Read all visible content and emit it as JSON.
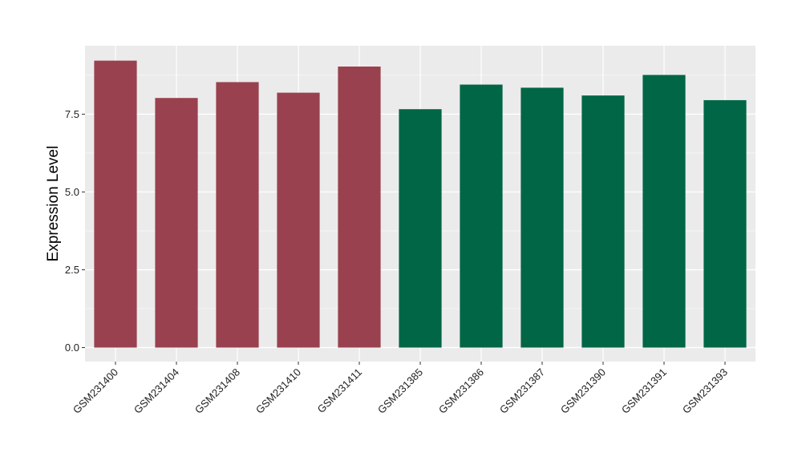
{
  "chart_data": {
    "type": "bar",
    "title": "",
    "xlabel": "",
    "ylabel": "Expression Level",
    "categories": [
      "GSM231400",
      "GSM231404",
      "GSM231408",
      "GSM231410",
      "GSM231411",
      "GSM231385",
      "GSM231386",
      "GSM231387",
      "GSM231390",
      "GSM231391",
      "GSM231393"
    ],
    "values": [
      9.22,
      8.02,
      8.53,
      8.19,
      9.03,
      7.66,
      8.45,
      8.35,
      8.1,
      8.76,
      7.95
    ],
    "groups": [
      1,
      1,
      1,
      1,
      1,
      2,
      2,
      2,
      2,
      2,
      2
    ],
    "group_colors": {
      "1": "#99414f",
      "2": "#006646"
    },
    "ylim": [
      -0.45,
      9.7
    ],
    "yticks": [
      0.0,
      2.5,
      5.0,
      7.5
    ],
    "ytick_labels": [
      "0.0",
      "2.5",
      "5.0",
      "7.5"
    ],
    "grid": true,
    "legend": "none",
    "panel_color": "#ebebeb"
  }
}
